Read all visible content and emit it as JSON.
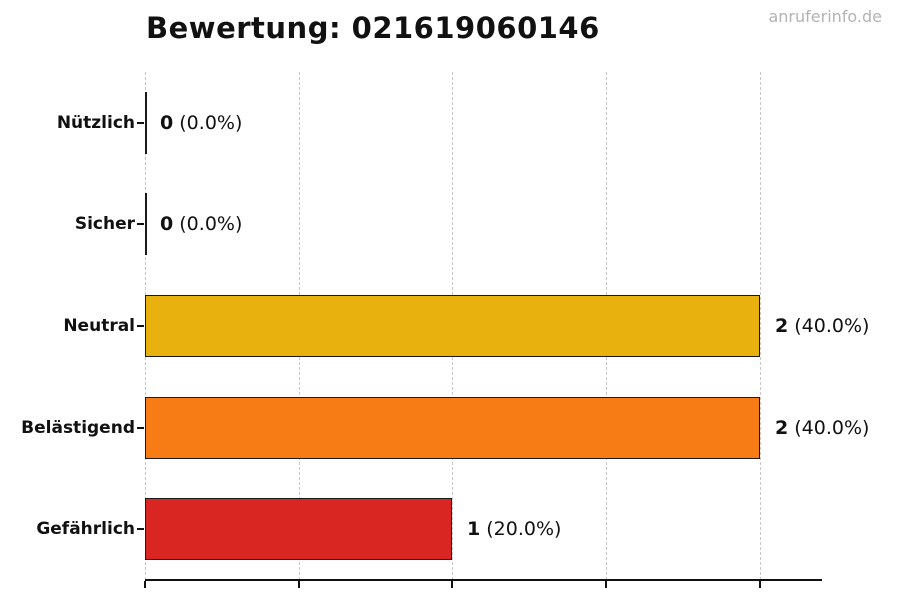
{
  "watermark": "anruferinfo.de",
  "chart_data": {
    "type": "bar",
    "orientation": "horizontal",
    "title": "Bewertung: 021619060146",
    "xlabel": "",
    "ylabel": "",
    "xlim": [
      0,
      2.2
    ],
    "xticks": [
      0,
      0.5,
      1.0,
      1.5,
      2.0
    ],
    "grid": "vertical-dashed",
    "legend": "none",
    "categories": [
      "Nützlich",
      "Sicher",
      "Neutral",
      "Belästigend",
      "Gefährlich"
    ],
    "values": [
      0,
      0,
      2,
      2,
      1
    ],
    "rows": [
      {
        "label": "Nützlich",
        "count": 0,
        "pct": "0.0%",
        "color": null
      },
      {
        "label": "Sicher",
        "count": 0,
        "pct": "0.0%",
        "color": null
      },
      {
        "label": "Neutral",
        "count": 2,
        "pct": "40.0%",
        "color": "#e8b10d"
      },
      {
        "label": "Belästigend",
        "count": 2,
        "pct": "40.0%",
        "color": "#f87c16"
      },
      {
        "label": "Gefährlich",
        "count": 1,
        "pct": "20.0%",
        "color": "#da2622"
      }
    ],
    "bar_edge_color": "#1a1a1a"
  }
}
